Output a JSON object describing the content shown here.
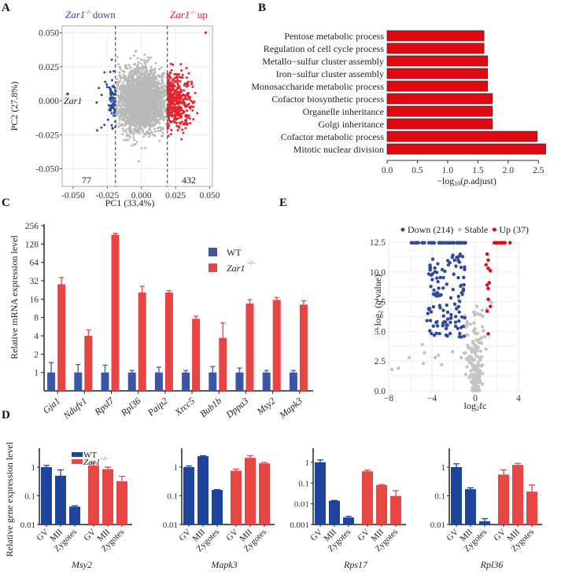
{
  "panels": {
    "A": {
      "letter": "A"
    },
    "B": {
      "letter": "B"
    },
    "C": {
      "letter": "C"
    },
    "D": {
      "letter": "D"
    },
    "E": {
      "letter": "E"
    }
  },
  "colors": {
    "down_blue": "#2e4aa0",
    "up_red": "#e8232e",
    "stable_gray": "#b9b9b9",
    "bar_red": "#e30613",
    "wt_blue": "#3b55a8",
    "ko_red": "#e84444",
    "d_blue": "#1f449c",
    "d_red": "#e84545"
  },
  "chart_data": [
    {
      "id": "A",
      "type": "scatter",
      "title": "",
      "xlabel": "PC1 (33.4%)",
      "ylabel": "PC2 (27.8%)",
      "xlim": [
        -0.058,
        0.052
      ],
      "ylim": [
        -0.063,
        0.055
      ],
      "xticks": [
        "-0.050",
        "-0.025",
        "0.000",
        "0.025",
        "0.050"
      ],
      "xtick_values": [
        -0.05,
        -0.025,
        0,
        0.025,
        0.05
      ],
      "yticks": [
        "0.050",
        "0.025",
        "0.000",
        "-0.025",
        "-0.050"
      ],
      "ytick_values": [
        0.05,
        0.025,
        0,
        -0.025,
        -0.05
      ],
      "thresholds": [
        -0.019,
        0.019
      ],
      "grid": true,
      "annotations": {
        "down_label_gene": "Zar1",
        "down_label_sup": "-/-",
        "down_label_text": "down",
        "up_label_gene": "Zar1",
        "up_label_sup": "-/-",
        "up_label_text": "up",
        "point_label": "Zar1",
        "down_count": "77",
        "up_count": "432"
      },
      "series": [
        {
          "name": "down",
          "count": 77,
          "color": "#2e4aa0"
        },
        {
          "name": "stable",
          "color": "#b9b9b9"
        },
        {
          "name": "up",
          "count": 432,
          "color": "#e8232e"
        }
      ],
      "highlight_point": {
        "label": "Zar1",
        "x": -0.054,
        "y": 0.005
      }
    },
    {
      "id": "B",
      "type": "bar",
      "orientation": "horizontal",
      "title": "",
      "xlabel_pre": "−log",
      "xlabel_sub": "10",
      "xlabel_mid": "(",
      "xlabel_ital": "p",
      "xlabel_post": ".adjust)",
      "xlim": [
        0,
        2.6
      ],
      "xticks": [
        "0.0",
        "0.5",
        "1.0",
        "1.5",
        "2.0",
        "2.5"
      ],
      "xtick_values": [
        0,
        0.5,
        1.0,
        1.5,
        2.0,
        2.5
      ],
      "categories": [
        "Pentose metabolic process",
        "Regulation of cell cycle process",
        "Metallo−sulfur cluster assembly",
        "Iron−sulfur cluster assembly",
        "Monosaccharide metabolic process",
        "Cofactor biosynthetic process",
        "Organelle inheritance",
        "Golgi inheritance",
        "Cofactor metabolic process",
        "Mitotic nuclear division"
      ],
      "values": [
        1.6,
        1.6,
        1.66,
        1.66,
        1.66,
        1.74,
        1.74,
        1.74,
        2.48,
        2.62
      ]
    },
    {
      "id": "C",
      "type": "bar",
      "title": "",
      "ylabel": "Relative mRNA expression level",
      "yscale": "log2",
      "ylim": [
        0.5,
        256
      ],
      "yticks": [
        "256",
        "128",
        "64",
        "32",
        "16",
        "8",
        "4",
        "2",
        "1"
      ],
      "ytick_values": [
        256,
        128,
        64,
        32,
        16,
        8,
        4,
        2,
        1
      ],
      "categories": [
        "Gja1",
        "Ndufv1",
        "Rpsl7",
        "Rpl36",
        "Paip2",
        "Xrcc5",
        "Bub1b",
        "Dppa3",
        "Msy2",
        "Mapk3"
      ],
      "legend": {
        "placement": "top-right",
        "wt": "WT",
        "ko": "Zar1",
        "ko_sup": "−/−"
      },
      "series": [
        {
          "name": "WT",
          "values": [
            1,
            1,
            1,
            1,
            1,
            1,
            1,
            1,
            1,
            1
          ],
          "err": [
            1.45,
            1.35,
            1.32,
            1.08,
            1.22,
            1.08,
            1.25,
            1.18,
            1.08,
            1.08
          ]
        },
        {
          "name": "Zar1-/-",
          "values": [
            28,
            4,
            182,
            20.5,
            20.5,
            7.6,
            3.7,
            13.5,
            15.5,
            13.0
          ],
          "err": [
            36,
            5,
            192,
            26,
            22,
            8.4,
            6.5,
            15.6,
            17,
            15
          ]
        }
      ]
    },
    {
      "id": "E",
      "type": "scatter",
      "title": "",
      "xlabel_pre": "log",
      "xlabel_sub": "2",
      "xlabel_post": "fc",
      "ylabel_pre": "−log",
      "ylabel_sub": "2",
      "ylabel_mid": " (",
      "ylabel_ital": "q",
      "ylabel_post": " value)",
      "xlim": [
        -8,
        4
      ],
      "ylim": [
        0,
        12.5
      ],
      "xticks": [
        "−8",
        "−4",
        "0",
        "4"
      ],
      "xtick_values": [
        -8,
        -4,
        0,
        4
      ],
      "yticks": [
        "12.5",
        "10.0",
        "7.5",
        "5.0",
        "2.5",
        "0.0"
      ],
      "ytick_values": [
        12.5,
        10,
        7.5,
        5,
        2.5,
        0
      ],
      "grid": true,
      "legend": {
        "placement": "top",
        "items": [
          {
            "label": "Down (214)",
            "color": "#2e4aa0"
          },
          {
            "label": "Stable",
            "color": "#c4c4c4"
          },
          {
            "label": "Up (37)",
            "color": "#e30613"
          }
        ]
      },
      "series": [
        {
          "name": "Down",
          "count": 214,
          "color": "#2e4aa0"
        },
        {
          "name": "Stable",
          "color": "#c4c4c4"
        },
        {
          "name": "Up",
          "count": 37,
          "color": "#e30613"
        }
      ]
    },
    {
      "id": "D",
      "type": "bar",
      "yscale": "log10",
      "ylabel": "Relative gene expression level",
      "legend": {
        "placement": "top-left",
        "wt": "WT",
        "ko": "Zar1",
        "ko_sup": "−/−"
      },
      "categories": [
        "GV",
        "MII",
        "Zygotes",
        "GV",
        "MII",
        "Zygotes"
      ],
      "subplots": [
        {
          "gene": "Msy2",
          "ylim": [
            0.01,
            4
          ],
          "yticks": [
            "1",
            "0.1",
            "0.01"
          ],
          "ytick_values": [
            1,
            0.1,
            0.01
          ],
          "wt": [
            1.0,
            0.5,
            0.042
          ],
          "wt_err": [
            1.15,
            0.8,
            0.045
          ],
          "ko": [
            1.15,
            0.85,
            0.32
          ],
          "ko_err": [
            1.4,
            1.0,
            0.48
          ]
        },
        {
          "gene": "Mapk3",
          "ylim": [
            0.01,
            4
          ],
          "yticks": [
            "1",
            "0.1",
            "0.01"
          ],
          "ytick_values": [
            1,
            0.1,
            0.01
          ],
          "wt": [
            1.0,
            2.4,
            0.16
          ],
          "wt_err": [
            1.1,
            2.5,
            0.165
          ],
          "ko": [
            0.75,
            2.1,
            1.35
          ],
          "ko_err": [
            0.85,
            2.5,
            1.45
          ]
        },
        {
          "gene": "Rps17",
          "ylim": [
            0.001,
            4
          ],
          "yticks": [
            "1",
            "0.1",
            "0.01",
            "0.001"
          ],
          "ytick_values": [
            1,
            0.1,
            0.01,
            0.001
          ],
          "wt": [
            1.0,
            0.014,
            0.0022
          ],
          "wt_err": [
            1.3,
            0.0145,
            0.0025
          ],
          "ko": [
            0.37,
            0.08,
            0.024
          ],
          "ko_err": [
            0.42,
            0.085,
            0.043
          ]
        },
        {
          "gene": "Rpl36",
          "ylim": [
            0.01,
            4
          ],
          "yticks": [
            "1",
            "0.1",
            "0.01"
          ],
          "ytick_values": [
            1,
            0.1,
            0.01
          ],
          "wt": [
            1.0,
            0.17,
            0.013
          ],
          "wt_err": [
            1.3,
            0.19,
            0.016
          ],
          "ko": [
            0.55,
            1.2,
            0.14
          ],
          "ko_err": [
            0.8,
            1.35,
            0.24
          ]
        }
      ]
    }
  ]
}
